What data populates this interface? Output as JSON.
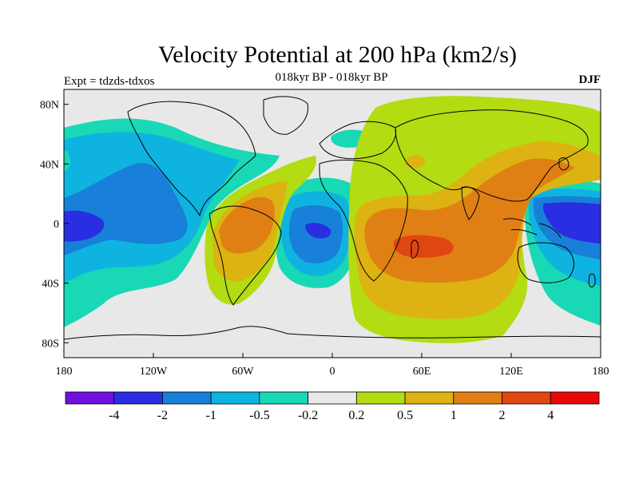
{
  "title": "Velocity Potential at 200 hPa (km2/s)",
  "subtitle": "018kyr BP - 018kyr BP",
  "experiment": "Expt = tdzds-tdxos",
  "season": "DJF",
  "map": {
    "projection": "cylindrical-equidistant",
    "lon_range": [
      -180,
      180
    ],
    "lat_range": [
      -90,
      90
    ],
    "coastlines": "black",
    "x_ticks": [
      {
        "lon": -180,
        "label": "180"
      },
      {
        "lon": -120,
        "label": "120W"
      },
      {
        "lon": -60,
        "label": "60W"
      },
      {
        "lon": 0,
        "label": "0"
      },
      {
        "lon": 60,
        "label": "60E"
      },
      {
        "lon": 120,
        "label": "120E"
      },
      {
        "lon": 180,
        "label": "180"
      }
    ],
    "y_ticks": [
      {
        "lat": 80,
        "label": "80N"
      },
      {
        "lat": 40,
        "label": "40N"
      },
      {
        "lat": 0,
        "label": "0"
      },
      {
        "lat": -40,
        "label": "40S"
      },
      {
        "lat": -80,
        "label": "80S"
      }
    ]
  },
  "colorbar": {
    "colors": [
      "#7011df",
      "#2a2ee2",
      "#1880d8",
      "#0fb3e0",
      "#19d8b5",
      "#e8e8e8",
      "#b3dc12",
      "#dcb312",
      "#e08014",
      "#e04612",
      "#e80a0a"
    ],
    "labels": [
      "-4",
      "-2",
      "-1",
      "-0.5",
      "-0.2",
      "0.2",
      "0.5",
      "1",
      "2",
      "4"
    ]
  }
}
